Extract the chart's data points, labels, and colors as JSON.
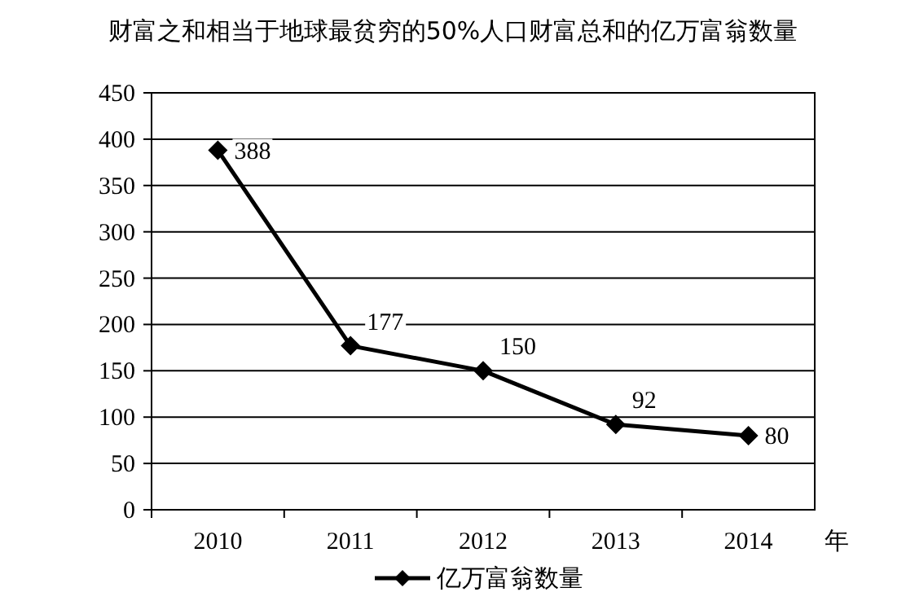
{
  "chart_data": {
    "type": "line",
    "title": "财富之和相当于地球最贫穷的50%人口财富总和的亿万富翁数量",
    "xlabel": "年",
    "categories": [
      "2010",
      "2011",
      "2012",
      "2013",
      "2014"
    ],
    "series": [
      {
        "name": "亿万富翁数量",
        "color": "#000000",
        "values": [
          388,
          177,
          150,
          92,
          80
        ]
      }
    ],
    "ylim": [
      0,
      450
    ],
    "yticks": [
      0,
      50,
      100,
      150,
      200,
      250,
      300,
      350,
      400,
      450
    ],
    "grid": "y",
    "legend": "bottom",
    "marker": "diamond",
    "line_style": "solid",
    "data_labels": true
  }
}
